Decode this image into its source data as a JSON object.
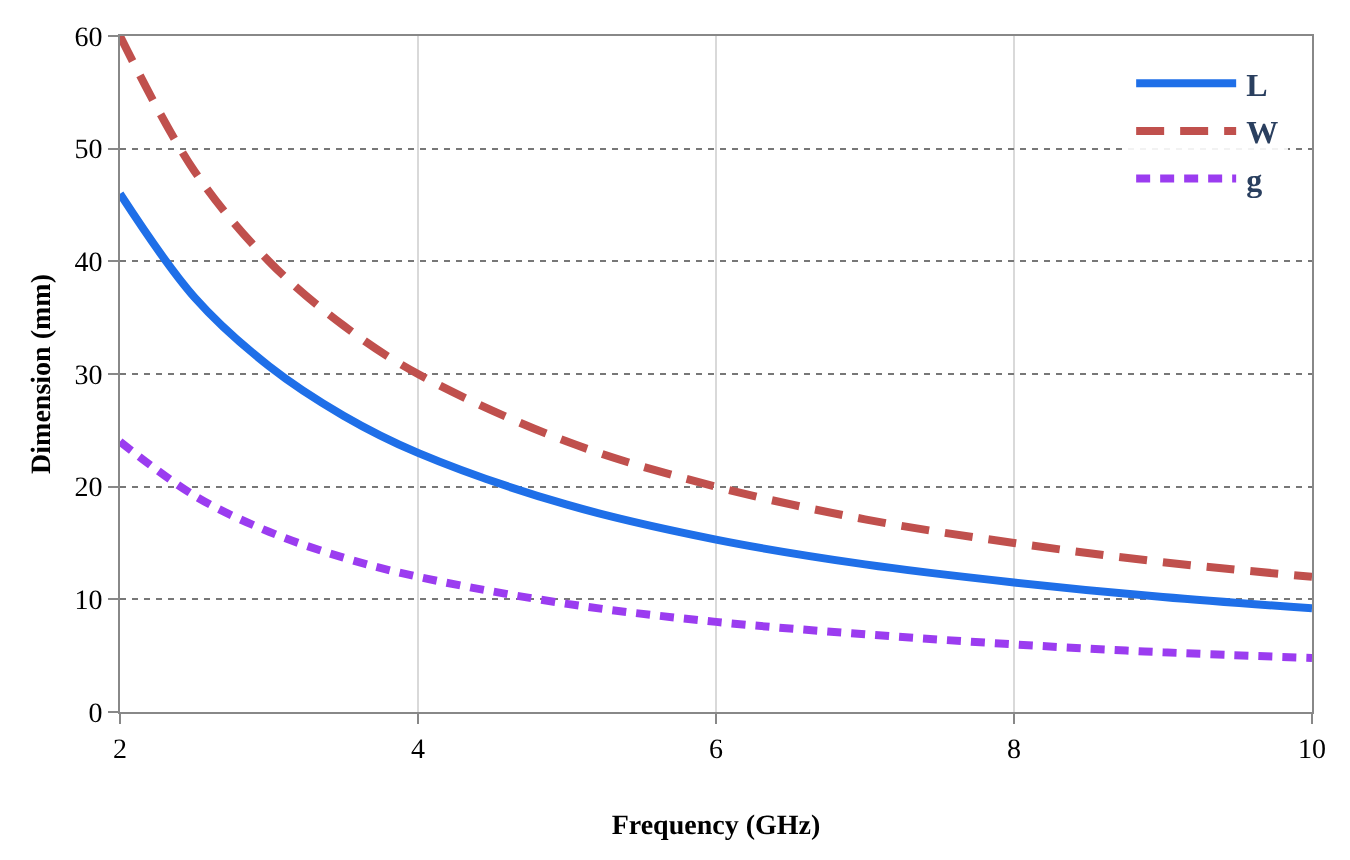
{
  "chart_data": {
    "type": "line",
    "xlabel": "Frequency (GHz)",
    "ylabel": "Dimension (mm)",
    "x": [
      2,
      2.5,
      3,
      3.5,
      4,
      5,
      6,
      7,
      8,
      9,
      10
    ],
    "series": [
      {
        "name": "L",
        "color": "#1f6fe8",
        "line_style": "solid",
        "values": [
          46,
          36.8,
          30.7,
          26.3,
          23,
          18.4,
          15.3,
          13.1,
          11.5,
          10.2,
          9.2
        ]
      },
      {
        "name": "W",
        "color": "#c0504d",
        "line_style": "dashed",
        "values": [
          60,
          48,
          40,
          34.3,
          30,
          24,
          20,
          17.1,
          15,
          13.3,
          12
        ]
      },
      {
        "name": "g",
        "color": "#9b3cf0",
        "line_style": "dotted",
        "values": [
          24,
          19.2,
          16,
          13.7,
          12,
          9.6,
          8,
          6.9,
          6,
          5.3,
          4.8
        ]
      }
    ],
    "xlim": [
      2,
      10
    ],
    "xticks": [
      2,
      4,
      6,
      8,
      10
    ],
    "ylim": [
      0,
      60
    ],
    "yticks": [
      0,
      10,
      20,
      30,
      40,
      50,
      60
    ],
    "grid": true,
    "legend": "top right",
    "marker": "none"
  }
}
